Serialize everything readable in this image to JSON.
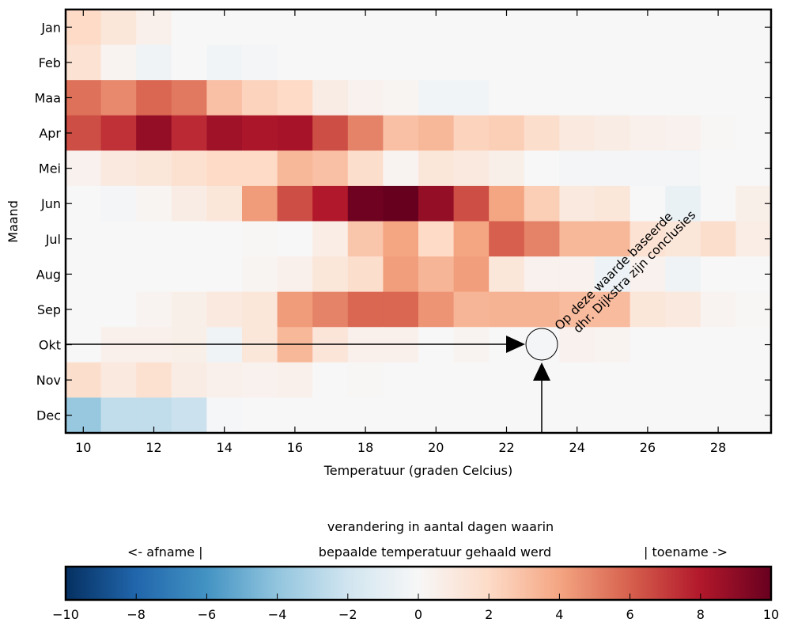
{
  "chart_data": {
    "type": "heatmap",
    "xlabel": "Temperatuur (graden Celcius)",
    "ylabel": "Maand",
    "x": [
      10,
      11,
      12,
      13,
      14,
      15,
      16,
      17,
      18,
      19,
      20,
      21,
      22,
      23,
      24,
      25,
      26,
      27,
      28,
      29
    ],
    "x_tick_labels": [
      "10",
      "12",
      "14",
      "16",
      "18",
      "20",
      "22",
      "24",
      "26",
      "28"
    ],
    "x_ticks": [
      10,
      12,
      14,
      16,
      18,
      20,
      22,
      24,
      26,
      28
    ],
    "y": [
      "Jan",
      "Feb",
      "Maa",
      "Apr",
      "Mei",
      "Jun",
      "Jul",
      "Aug",
      "Sep",
      "Okt",
      "Nov",
      "Dec"
    ],
    "values": [
      [
        2.0,
        1.2,
        0.5,
        0,
        0,
        0,
        0,
        0,
        0,
        0,
        0,
        0,
        0,
        0,
        0,
        0,
        0,
        0,
        0,
        0
      ],
      [
        1.5,
        0.3,
        -0.4,
        0,
        -0.3,
        -0.2,
        0,
        0,
        0,
        0,
        0,
        0,
        0,
        0,
        0,
        0,
        0,
        0,
        0,
        0
      ],
      [
        5.5,
        4.8,
        5.8,
        5.3,
        3.0,
        2.3,
        2.0,
        0.8,
        0.4,
        0.2,
        -0.3,
        -0.3,
        0,
        0,
        0,
        0,
        0,
        0,
        0,
        0
      ],
      [
        6.5,
        7.3,
        8.8,
        7.5,
        8.5,
        8.2,
        8.3,
        6.5,
        5.0,
        3.0,
        3.3,
        2.3,
        2.5,
        1.8,
        1.0,
        0.8,
        0.5,
        0.4,
        0.1,
        0
      ],
      [
        0.4,
        1.0,
        1.2,
        1.6,
        2.0,
        2.0,
        3.3,
        3.0,
        1.8,
        0.3,
        1.2,
        1.0,
        0.6,
        0,
        -0.2,
        -0.2,
        -0.2,
        -0.2,
        0,
        0
      ],
      [
        0,
        -0.2,
        0.2,
        0.8,
        1.2,
        4.3,
        6.5,
        8.0,
        9.8,
        10.0,
        8.8,
        6.5,
        4.0,
        2.5,
        1.0,
        1.2,
        0,
        -0.7,
        0,
        0.6
      ],
      [
        0,
        0,
        0,
        0,
        0,
        0.1,
        0,
        0.7,
        2.8,
        4.0,
        2.0,
        4.0,
        6.0,
        5.0,
        3.3,
        3.3,
        1.5,
        1.2,
        1.8,
        0.7
      ],
      [
        0,
        0,
        0,
        0,
        0,
        0.2,
        0.5,
        1.2,
        1.8,
        4.2,
        3.4,
        4.2,
        1.2,
        0.4,
        0.4,
        -0.6,
        0.4,
        -0.4,
        0,
        0
      ],
      [
        0,
        0,
        0.3,
        0.6,
        1.0,
        1.2,
        4.3,
        5.0,
        5.8,
        5.8,
        4.5,
        3.4,
        3.5,
        3.5,
        3.2,
        3.2,
        1.2,
        1.0,
        0.3,
        0.1
      ],
      [
        0,
        0.5,
        0.5,
        0.6,
        -0.4,
        1.2,
        3.3,
        1.3,
        0.5,
        0.5,
        0,
        0.3,
        0,
        0,
        0.4,
        0.3,
        0,
        0,
        0,
        0
      ],
      [
        1.8,
        1.0,
        1.6,
        0.8,
        0.5,
        0.4,
        0.5,
        0,
        0.1,
        0,
        0,
        0,
        0,
        0,
        0,
        0,
        0,
        0,
        0,
        0
      ],
      [
        -3.8,
        -2.5,
        -2.5,
        -2.2,
        -0.1,
        0,
        0,
        0,
        0,
        0,
        0,
        0,
        0,
        0,
        0,
        0,
        0,
        0,
        0,
        0
      ]
    ],
    "colormap": "RdBu_r",
    "vmin": -10,
    "vmax": 10,
    "annotation": {
      "lines": [
        "Op deze waarde baseerde",
        "dhr. Dijkstra zijn conclusies"
      ],
      "target_x": 23,
      "target_y": "Okt"
    },
    "colorbar": {
      "title_lines": [
        "verandering in aantal dagen waarin",
        "bepaalde temperatuur gehaald werd"
      ],
      "left_label": "<- afname |",
      "right_label": "| toename ->",
      "ticks": [
        -10,
        -8,
        -6,
        -4,
        -2,
        0,
        2,
        4,
        6,
        8,
        10
      ],
      "tick_labels": [
        "−10",
        "−8",
        "−6",
        "−4",
        "−2",
        "0",
        "2",
        "4",
        "6",
        "8",
        "10"
      ]
    }
  },
  "colors": {
    "stops": [
      "#053061",
      "#2166ac",
      "#4393c3",
      "#92c5de",
      "#d1e5f0",
      "#f7f7f7",
      "#fddbc7",
      "#f4a582",
      "#d6604d",
      "#b2182b",
      "#67001f"
    ]
  }
}
